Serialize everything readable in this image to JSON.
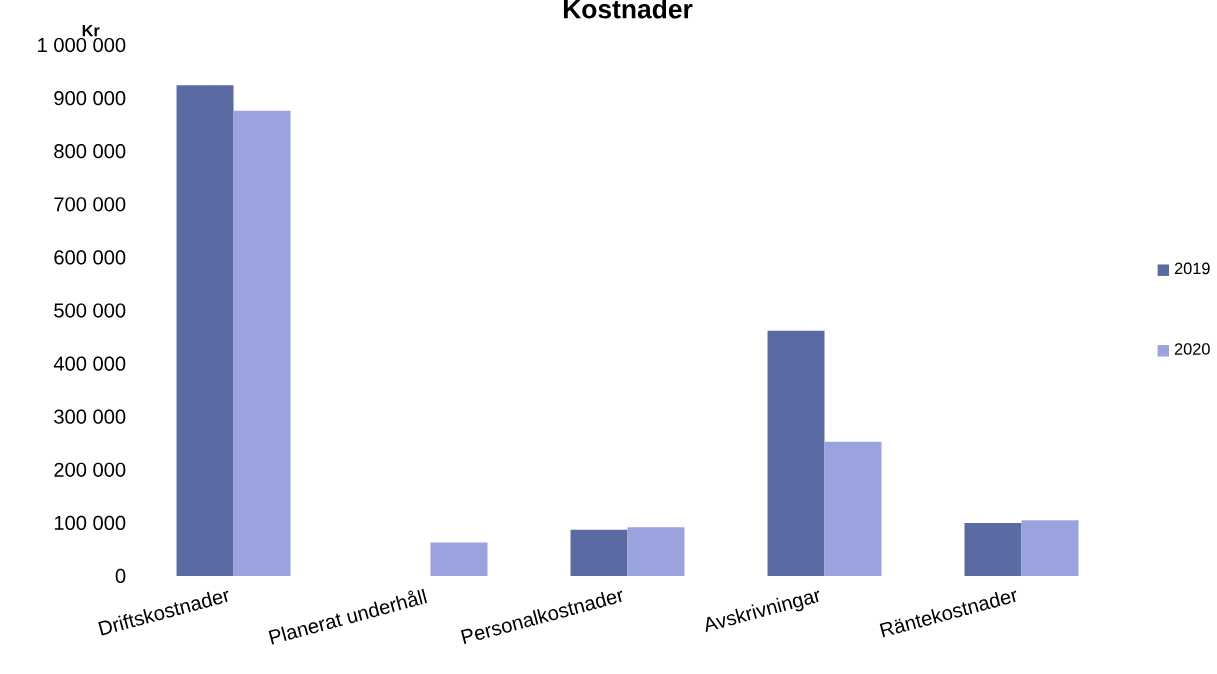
{
  "chart_data": {
    "type": "bar",
    "title": "Kostnader",
    "ylabel": "Kr",
    "categories": [
      "Driftskostnader",
      "Planerat underhåll",
      "Personalkostnader",
      "Avskrivningar",
      "Räntekostnader"
    ],
    "series": [
      {
        "name": "2019",
        "color": "#5a6aa3",
        "values": [
          924000,
          null,
          87000,
          462000,
          100000
        ]
      },
      {
        "name": "2020",
        "color": "#9aa3dd",
        "values": [
          876000,
          63000,
          92000,
          253000,
          105000
        ]
      }
    ],
    "ylim": [
      0,
      1000000
    ],
    "yticks": [
      {
        "value": 0,
        "label": "0"
      },
      {
        "value": 100000,
        "label": "100 000"
      },
      {
        "value": 200000,
        "label": "200 000"
      },
      {
        "value": 300000,
        "label": "300 000"
      },
      {
        "value": 400000,
        "label": "400 000"
      },
      {
        "value": 500000,
        "label": "500 000"
      },
      {
        "value": 600000,
        "label": "600 000"
      },
      {
        "value": 700000,
        "label": "700 000"
      },
      {
        "value": 800000,
        "label": "800 000"
      },
      {
        "value": 900000,
        "label": "900 000"
      },
      {
        "value": 1000000,
        "label": "1 000 000"
      }
    ],
    "legend": "right"
  }
}
